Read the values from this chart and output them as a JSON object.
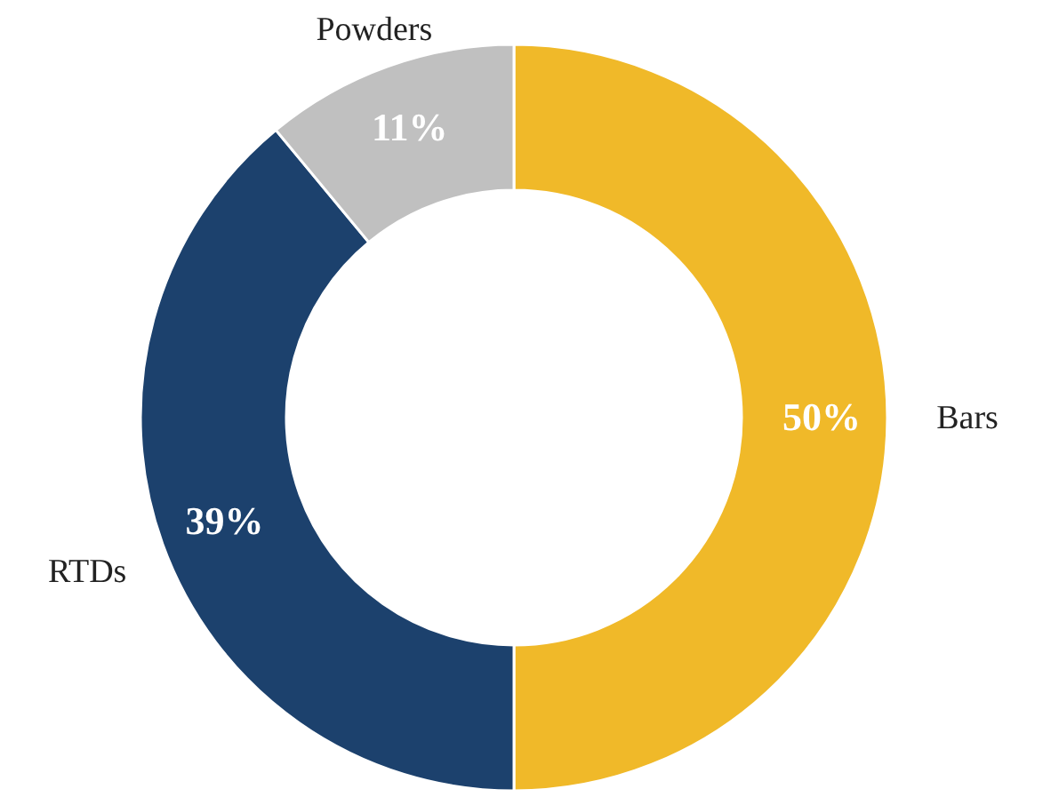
{
  "chart_data": {
    "type": "donut",
    "categories": [
      "Bars",
      "RTDs",
      "Powders"
    ],
    "values": [
      50,
      39,
      11
    ],
    "colors": [
      "#f0b929",
      "#1c416d",
      "#c0c0c0"
    ],
    "value_labels": [
      "50%",
      "39%",
      "11%"
    ]
  }
}
